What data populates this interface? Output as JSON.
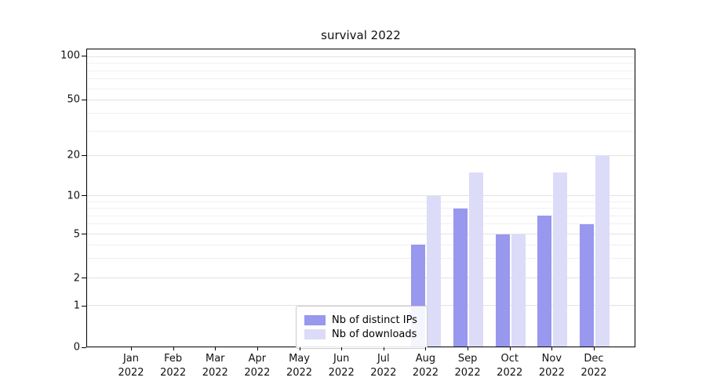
{
  "title": "survival 2022",
  "chart_data": {
    "type": "bar",
    "title": "survival 2022",
    "categories": [
      "Jan",
      "Feb",
      "Mar",
      "Apr",
      "May",
      "Jun",
      "Jul",
      "Aug",
      "Sep",
      "Oct",
      "Nov",
      "Dec"
    ],
    "category_year": "2022",
    "series": [
      {
        "name": "Nb of distinct IPs",
        "color": "#9898ee",
        "values": [
          0,
          0,
          0,
          0,
          0,
          0,
          0,
          4,
          8,
          5,
          7,
          6
        ]
      },
      {
        "name": "Nb of downloads",
        "color": "#dcdcf8",
        "values": [
          0,
          0,
          0,
          0,
          0,
          0,
          0,
          10,
          15,
          5,
          15,
          20
        ]
      }
    ],
    "xlabel": "",
    "ylabel": "",
    "yscale": "symlog",
    "yticks": [
      0,
      1,
      2,
      5,
      10,
      20,
      50,
      100
    ],
    "yticks_minor": [
      3,
      4,
      6,
      7,
      8,
      9,
      30,
      40,
      60,
      70,
      80,
      90
    ],
    "ylim": [
      0,
      110
    ],
    "grid": "horizontal",
    "legend": {
      "position": "lower center",
      "labels": [
        "Nb of distinct IPs",
        "Nb of downloads"
      ]
    }
  }
}
